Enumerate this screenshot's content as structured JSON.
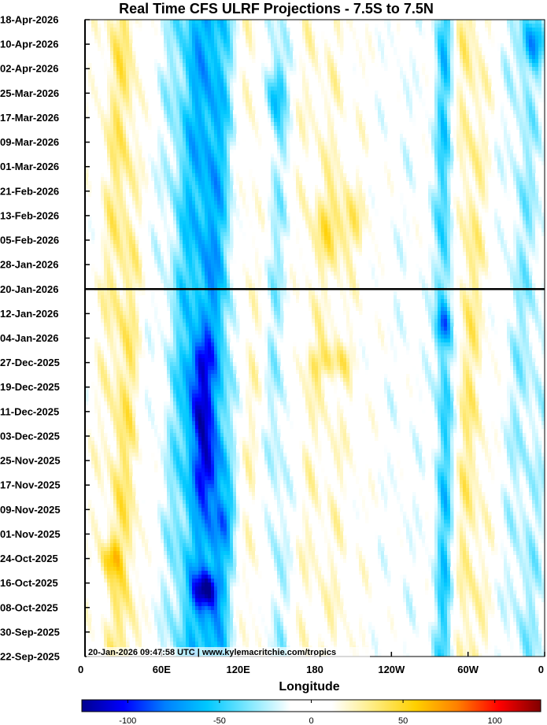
{
  "chart_data": {
    "type": "heatmap",
    "title": "Real Time CFS ULRF Projections - 7.5S to 7.5N",
    "xlabel": "Longitude",
    "ylabel": "",
    "x_ticks": [
      {
        "label": "0",
        "lon": 0
      },
      {
        "label": "60E",
        "lon": 60
      },
      {
        "label": "120E",
        "lon": 120
      },
      {
        "label": "180",
        "lon": 180
      },
      {
        "label": "120W",
        "lon": 240
      },
      {
        "label": "60W",
        "lon": 300
      },
      {
        "label": "0",
        "lon": 360
      }
    ],
    "xlim": [
      0,
      360
    ],
    "y_ticks": [
      "18-Apr-2026",
      "10-Apr-2026",
      "02-Apr-2026",
      "25-Mar-2026",
      "17-Mar-2026",
      "09-Mar-2026",
      "01-Mar-2026",
      "21-Feb-2026",
      "13-Feb-2026",
      "05-Feb-2026",
      "28-Jan-2026",
      "20-Jan-2026",
      "12-Jan-2026",
      "04-Jan-2026",
      "27-Dec-2025",
      "19-Dec-2025",
      "11-Dec-2025",
      "03-Dec-2025",
      "25-Nov-2025",
      "17-Nov-2025",
      "09-Nov-2025",
      "01-Nov-2025",
      "24-Oct-2025",
      "16-Oct-2025",
      "08-Oct-2025",
      "30-Sep-2025",
      "22-Sep-2025"
    ],
    "ylim": [
      "22-Sep-2025",
      "18-Apr-2026"
    ],
    "forecast_start": "20-Jan-2026",
    "colorbar": {
      "ticks": [
        -100,
        -50,
        0,
        50,
        100
      ],
      "range": [
        -125,
        125
      ],
      "colors": [
        "#00008f",
        "#0000ff",
        "#0080ff",
        "#00c8ff",
        "#80e8ff",
        "#ffffff",
        "#ffffff",
        "#ffec80",
        "#ffd000",
        "#ff8000",
        "#ff0000",
        "#800000"
      ]
    },
    "bands": [
      {
        "lon": 30,
        "width": 18,
        "amp": 32
      },
      {
        "lon": 48,
        "width": 8,
        "amp": -10
      },
      {
        "lon": 75,
        "width": 16,
        "amp": -30
      },
      {
        "lon": 95,
        "width": 16,
        "amp": -50
      },
      {
        "lon": 108,
        "width": 14,
        "amp": -25
      },
      {
        "lon": 130,
        "width": 14,
        "amp": 18
      },
      {
        "lon": 150,
        "width": 12,
        "amp": -30
      },
      {
        "lon": 185,
        "width": 30,
        "amp": 15
      },
      {
        "lon": 250,
        "width": 22,
        "amp": -6
      },
      {
        "lon": 282,
        "width": 8,
        "amp": -55
      },
      {
        "lon": 300,
        "width": 16,
        "amp": 28
      },
      {
        "lon": 345,
        "width": 18,
        "amp": -25
      }
    ],
    "blobs": [
      {
        "lon": 95,
        "date": "14-Oct-2025",
        "rx": 10,
        "ry_days": 6,
        "amp": -65
      },
      {
        "lon": 90,
        "date": "11-Dec-2025",
        "rx": 10,
        "ry_days": 12,
        "amp": -45
      },
      {
        "lon": 95,
        "date": "22-Nov-2025",
        "rx": 12,
        "ry_days": 10,
        "amp": -40
      },
      {
        "lon": 90,
        "date": "27-Dec-2025",
        "rx": 10,
        "ry_days": 8,
        "amp": -40
      },
      {
        "lon": 110,
        "date": "06-Nov-2025",
        "rx": 10,
        "ry_days": 8,
        "amp": -35
      },
      {
        "lon": 200,
        "date": "10-Feb-2026",
        "rx": 20,
        "ry_days": 12,
        "amp": 30
      },
      {
        "lon": 190,
        "date": "27-Dec-2025",
        "rx": 18,
        "ry_days": 6,
        "amp": 28
      },
      {
        "lon": 150,
        "date": "25-Mar-2026",
        "rx": 8,
        "ry_days": 10,
        "amp": -40
      },
      {
        "lon": 20,
        "date": "24-Oct-2025",
        "rx": 8,
        "ry_days": 6,
        "amp": 35
      },
      {
        "lon": 350,
        "date": "10-Apr-2026",
        "rx": 10,
        "ry_days": 8,
        "amp": -45
      },
      {
        "lon": 280,
        "date": "08-Jan-2026",
        "rx": 6,
        "ry_days": 6,
        "amp": -45
      }
    ]
  },
  "stamp": "20-Jan-2026 09:47:58 UTC | www.kylemacritchie.com/tropics"
}
